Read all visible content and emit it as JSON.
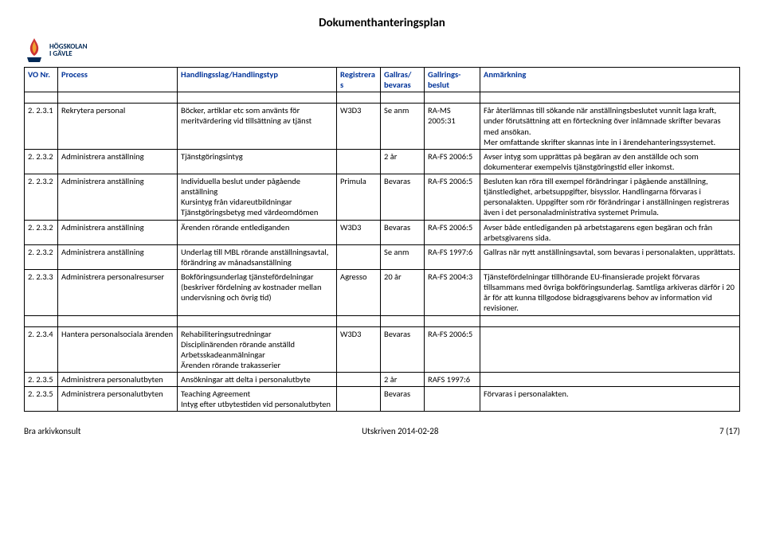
{
  "title": "Dokumenthanteringsplan",
  "logo": {
    "line1": "HÖGSKOLAN",
    "line2": "I GÄVLE"
  },
  "columns": [
    "VO Nr.",
    "Process",
    "Handlingsslag/Handlingstyp",
    "Registreras",
    "Gallras/ bevaras",
    "Gallrings-beslut",
    "Anmärkning"
  ],
  "rows": [
    {
      "blank": true
    },
    {
      "vo": "2.  2.3.1",
      "proc": "Rekrytera personal",
      "hand": "Böcker, artiklar etc som använts för meritvärdering vid tillsättning av tjänst",
      "reg": "W3D3",
      "gal": "Se anm",
      "besl": "RA-MS 2005:31",
      "anm": "Får återlämnas till sökande när anställningsbeslutet vunnit laga kraft, under förutsättning att en förteckning över inlämnade skrifter bevaras med ansökan.\nMer omfattande skrifter skannas inte in i ärendehanteringssystemet."
    },
    {
      "vo": "2.  2.3.2",
      "proc": "Administrera anställning",
      "hand": "Tjänstgöringsintyg",
      "reg": "",
      "gal": "2 år",
      "besl": "RA-FS 2006:5",
      "anm": "Avser intyg som upprättas på begäran av den anställde och som dokumenterar exempelvis tjänstgöringstid eller inkomst."
    },
    {
      "vo": "2.  2.3.2",
      "proc": "Administrera anställning",
      "hand": "Individuella beslut under pågående anställning\nKursintyg från vidareutbildningar\nTjänstgöringsbetyg med värdeomdömen",
      "reg": "Primula",
      "gal": "Bevaras",
      "besl": "RA-FS 2006:5",
      "anm": "Besluten kan röra till exempel förändringar i pågående anställning, tjänstledighet, arbetsuppgifter, bisysslor. Handlingarna förvaras i personalakten. Uppgifter som rör förändringar i anställningen registreras även i det personaladministrativa systemet Primula."
    },
    {
      "vo": "2.  2.3.2",
      "proc": "Administrera anställning",
      "hand": "Ärenden rörande entlediganden",
      "reg": "W3D3",
      "gal": "Bevaras",
      "besl": "RA-FS 2006:5",
      "anm": "Avser både entlediganden på arbetstagarens egen begäran och från arbetsgivarens sida."
    },
    {
      "vo": "2.  2.3.2",
      "proc": "Administrera anställning",
      "hand": "Underlag till MBL rörande anställningsavtal, förändring av månadsanställning",
      "reg": "",
      "gal": "Se anm",
      "besl": "RA-FS 1997:6",
      "anm": "Gallras när nytt anställningsavtal, som bevaras i personalakten, upprättats."
    },
    {
      "vo": "2.  2.3.3",
      "proc": "Administrera personalresurser",
      "hand": "Bokföringsunderlag tjänstefördelningar (beskriver fördelning av kostnader mellan undervisning och övrig tid)",
      "reg": "Agresso",
      "gal": "20 år",
      "besl": "RA-FS 2004:3",
      "anm": "Tjänstefördelningar tillhörande EU-finansierade projekt förvaras tillsammans med övriga bokföringsunderlag. Samtliga arkiveras därför i 20 år för att kunna tillgodose bidragsgivarens behov av information vid revisioner."
    },
    {
      "blank": true
    },
    {
      "vo": "2.  2.3.4",
      "proc": "Hantera personalsociala ärenden",
      "hand": "Rehabiliteringsutredningar\nDisciplinärenden rörande anställd\nArbetsskadeanmälningar\nÄrenden rörande trakasserier",
      "reg": "W3D3",
      "gal": "Bevaras",
      "besl": "RA-FS 2006:5",
      "anm": ""
    },
    {
      "vo": "2.  2.3.5",
      "proc": "Administrera personalutbyten",
      "hand": "Ansökningar att delta i personalutbyte",
      "reg": "",
      "gal": "2 år",
      "besl": "RAFS 1997:6",
      "anm": ""
    },
    {
      "vo": "2.  2.3.5",
      "proc": "Administrera personalutbyten",
      "hand": "Teaching Agreement\nIntyg efter utbytestiden vid personalutbyten",
      "reg": "",
      "gal": "Bevaras",
      "besl": "",
      "anm": "Förvaras i personalakten."
    }
  ],
  "footer": {
    "left": "Bra arkivkonsult",
    "center": "Utskriven 2014-02-28",
    "right": "7 (17)"
  },
  "colors": {
    "header_text": "#003399",
    "border": "#000000",
    "logo_blue": "#002855"
  }
}
